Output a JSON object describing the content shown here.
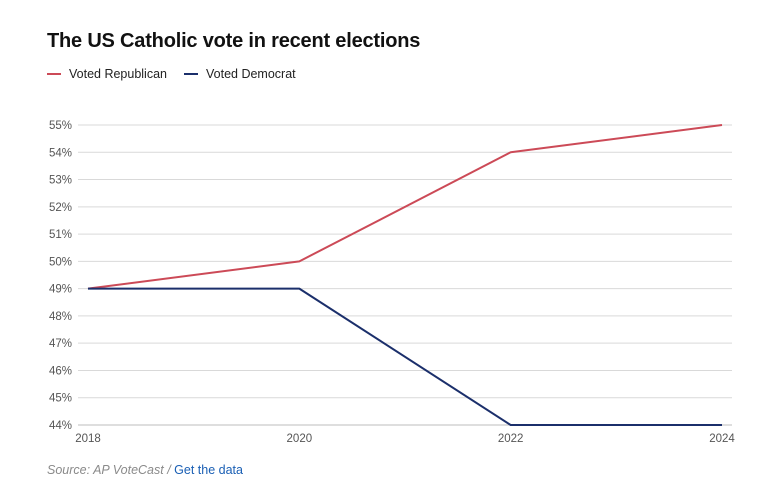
{
  "header": {
    "title": "The US Catholic vote in recent elections"
  },
  "footer": {
    "source_label": "Source: AP VoteCast",
    "separator": " / ",
    "link_label": "Get the data"
  },
  "colors": {
    "republican": "#cc4a57",
    "democrat": "#1b2f6b",
    "grid": "#d9d9d9",
    "link": "#1a5fb4"
  },
  "chart_data": {
    "type": "line",
    "title": "The US Catholic vote in recent elections",
    "xlabel": "",
    "ylabel": "",
    "x": [
      "2018",
      "2020",
      "2022",
      "2024"
    ],
    "ylim": [
      44,
      55
    ],
    "yticks": [
      "44%",
      "45%",
      "46%",
      "47%",
      "48%",
      "49%",
      "50%",
      "51%",
      "52%",
      "53%",
      "54%",
      "55%"
    ],
    "grid": true,
    "legend_position": "top-left",
    "series": [
      {
        "name": "Voted Republican",
        "color": "#cc4a57",
        "values": [
          49,
          50,
          54,
          55
        ]
      },
      {
        "name": "Voted Democrat",
        "color": "#1b2f6b",
        "values": [
          49,
          49,
          44,
          44
        ]
      }
    ]
  }
}
